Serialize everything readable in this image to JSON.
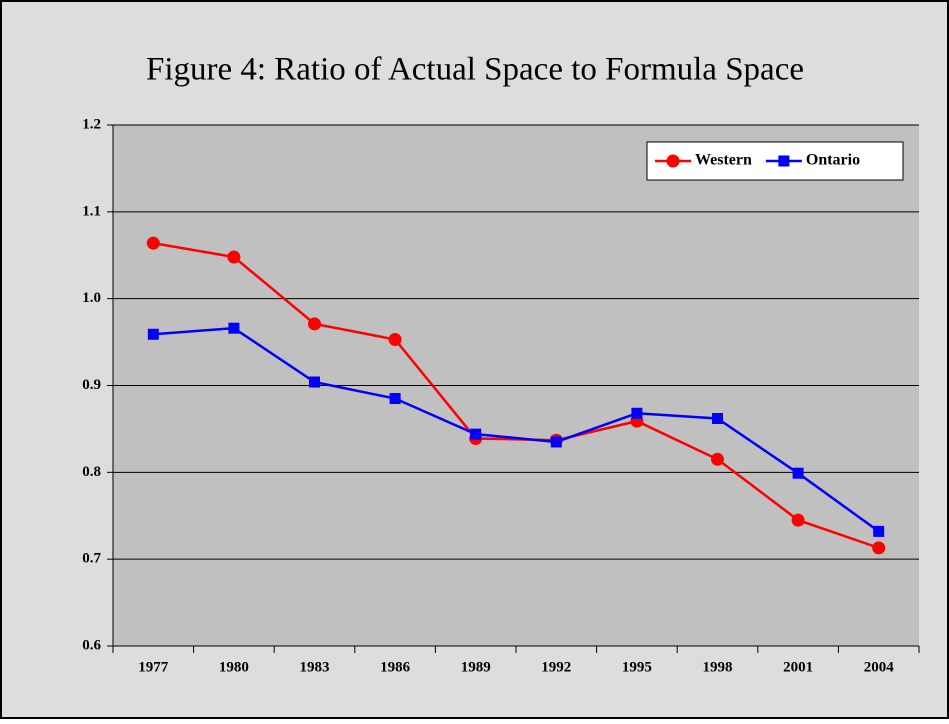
{
  "chart_data": {
    "type": "line",
    "title": "Figure 4:  Ratio of Actual Space to Formula Space",
    "categories": [
      "1977",
      "1980",
      "1983",
      "1986",
      "1989",
      "1992",
      "1995",
      "1998",
      "2001",
      "2004"
    ],
    "series": [
      {
        "name": "Western",
        "color": "#ff0000",
        "marker": "circle",
        "values": [
          1.064,
          1.048,
          0.971,
          0.953,
          0.839,
          0.837,
          0.859,
          0.815,
          0.745,
          0.713
        ]
      },
      {
        "name": "Ontario",
        "color": "#0000ff",
        "marker": "square",
        "values": [
          0.959,
          0.966,
          0.904,
          0.885,
          0.844,
          0.835,
          0.868,
          0.862,
          0.799,
          0.732
        ]
      }
    ],
    "ylim": [
      0.6,
      1.2
    ],
    "yticks": [
      0.6,
      0.7,
      0.8,
      0.9,
      {
        "value": 1,
        "label": "1.0"
      },
      1.1,
      1.2
    ],
    "grid": true,
    "legend": "top-right"
  }
}
